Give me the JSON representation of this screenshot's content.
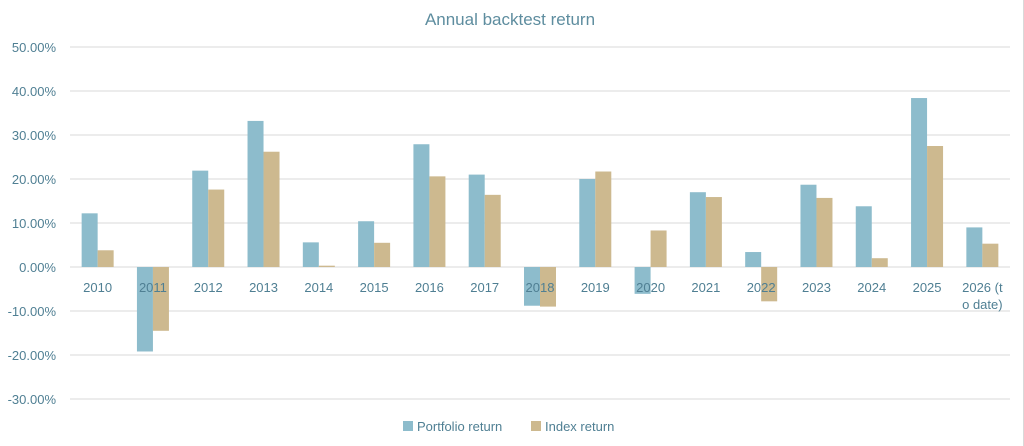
{
  "chart_data": {
    "type": "bar",
    "title": "Annual backtest return",
    "xlabel": "",
    "ylabel": "",
    "categories": [
      "2010",
      "2011",
      "2012",
      "2013",
      "2014",
      "2015",
      "2016",
      "2017",
      "2018",
      "2019",
      "2020",
      "2021",
      "2022",
      "2023",
      "2024",
      "2025",
      "2026 (to date)"
    ],
    "series": [
      {
        "name": "Portfolio return",
        "color": "#8dbccc",
        "values": [
          12.2,
          -19.2,
          21.9,
          33.2,
          5.6,
          10.4,
          27.9,
          21.0,
          -8.8,
          20.0,
          -6.1,
          17.0,
          3.4,
          18.7,
          13.8,
          38.4,
          9.0
        ]
      },
      {
        "name": "Index return",
        "color": "#cdb98f",
        "values": [
          3.8,
          -14.5,
          17.6,
          26.2,
          0.3,
          5.5,
          20.6,
          16.4,
          -9.0,
          21.7,
          8.3,
          15.9,
          -7.8,
          15.7,
          2.0,
          27.5,
          5.3
        ]
      }
    ],
    "ylim": [
      -30,
      50
    ],
    "yticks": [
      50,
      40,
      30,
      20,
      10,
      0,
      -10,
      -20,
      -30
    ],
    "ytick_labels": [
      "50.00%",
      "40.00%",
      "30.00%",
      "20.00%",
      "10.00%",
      "0.00%",
      "-10.00%",
      "-20.00%",
      "-30.00%"
    ],
    "grid": true,
    "legend_position": "bottom"
  }
}
